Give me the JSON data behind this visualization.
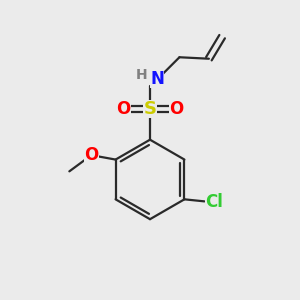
{
  "bg_color": "#ebebeb",
  "atom_colors": {
    "C": "#1a1a1a",
    "H": "#808080",
    "N": "#1414ff",
    "O": "#ff0000",
    "S": "#cccc00",
    "Cl": "#33cc33"
  },
  "bond_color": "#2a2a2a",
  "bond_lw": 1.6,
  "fig_size": [
    3.0,
    3.0
  ],
  "dpi": 100
}
